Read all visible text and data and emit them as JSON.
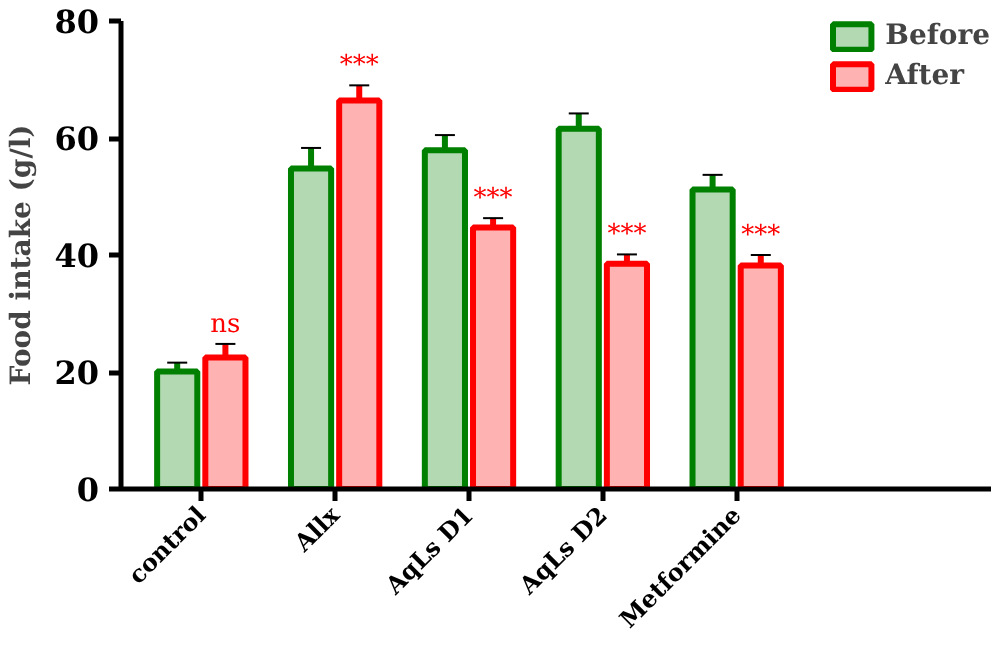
{
  "chart_data": {
    "type": "bar",
    "ylabel": "Food intake (g/l)",
    "categories": [
      "control",
      "Allx",
      "AqLs D1",
      "AqLs D2",
      "Metformine"
    ],
    "series": [
      {
        "name": "Before",
        "color": "#008000",
        "values": [
          20.1,
          54.8,
          57.9,
          61.6,
          51.2
        ],
        "errors": [
          1.5,
          3.5,
          2.6,
          2.6,
          2.5
        ]
      },
      {
        "name": "After",
        "color": "#ff0000",
        "values": [
          22.5,
          66.4,
          44.7,
          38.5,
          38.2
        ],
        "errors": [
          2.3,
          2.6,
          1.6,
          1.6,
          1.8
        ]
      }
    ],
    "ylim": [
      0,
      80
    ],
    "yticks": [
      0,
      20,
      40,
      60,
      80
    ],
    "grid": false,
    "legend": "top right",
    "annotations": [
      {
        "text": "ns",
        "x": "control",
        "y": 22.5
      },
      {
        "text": "***",
        "x": "Allx",
        "y": 66.4
      },
      {
        "text": "***",
        "x": "AqLs D1",
        "y": 44.7
      },
      {
        "text": "***",
        "x": "AqLs D2",
        "y": 38.5
      },
      {
        "text": "***",
        "x": "Metformine",
        "y": 38.2
      }
    ]
  }
}
